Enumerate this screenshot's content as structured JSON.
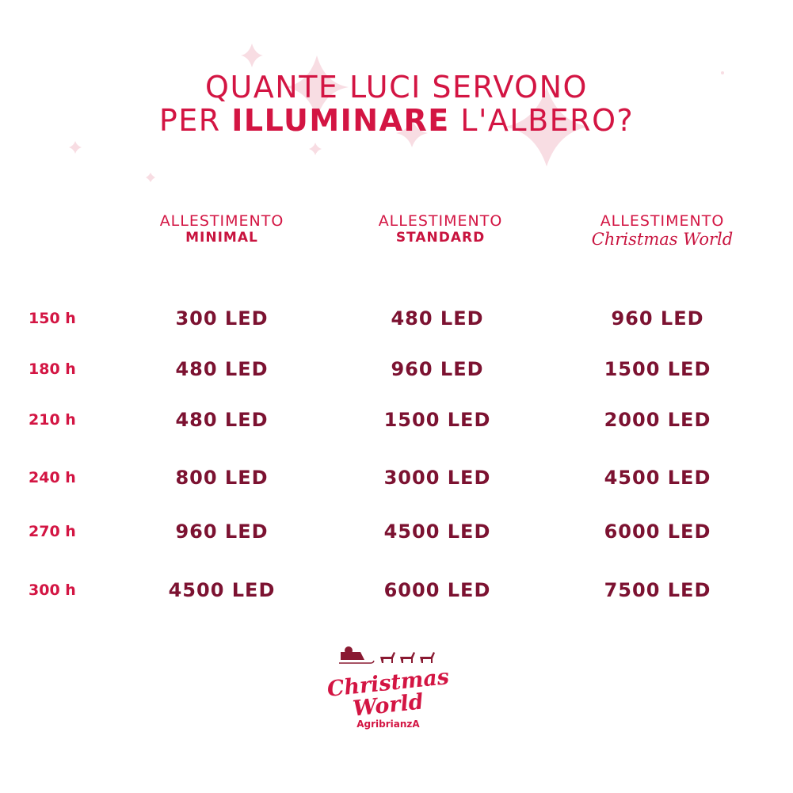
{
  "title": {
    "line1": "QUANTE LUCI SERVONO",
    "line2_prefix": "PER ",
    "line2_bold": "ILLUMINARE",
    "line2_suffix": " L'ALBERO?"
  },
  "columns": [
    {
      "line1": "ALLESTIMENTO",
      "line2": "MINIMAL"
    },
    {
      "line1": "ALLESTIMENTO",
      "line2": "STANDARD"
    },
    {
      "line1": "ALLESTIMENTO",
      "line2": "Christmas World"
    }
  ],
  "rows": [
    {
      "height": "150 h",
      "values": [
        "300 LED",
        "480 LED",
        "960 LED"
      ]
    },
    {
      "height": "180 h",
      "values": [
        "480 LED",
        "960 LED",
        "1500 LED"
      ]
    },
    {
      "height": "210 h",
      "values": [
        "480 LED",
        "1500 LED",
        "2000 LED"
      ]
    },
    {
      "height": "240 h",
      "values": [
        "800 LED",
        "3000 LED",
        "4500 LED"
      ]
    },
    {
      "height": "270 h",
      "values": [
        "960 LED",
        "4500 LED",
        "6000 LED"
      ]
    },
    {
      "height": "300 h",
      "values": [
        "4500 LED",
        "6000 LED",
        "7500 LED"
      ]
    }
  ],
  "logo": {
    "line1": "Christmas",
    "line2": "World",
    "brand": "AgribrianzA"
  },
  "colors": {
    "accent": "#d31543",
    "value": "#7c1231",
    "sparkle": "#f7d9e0"
  }
}
